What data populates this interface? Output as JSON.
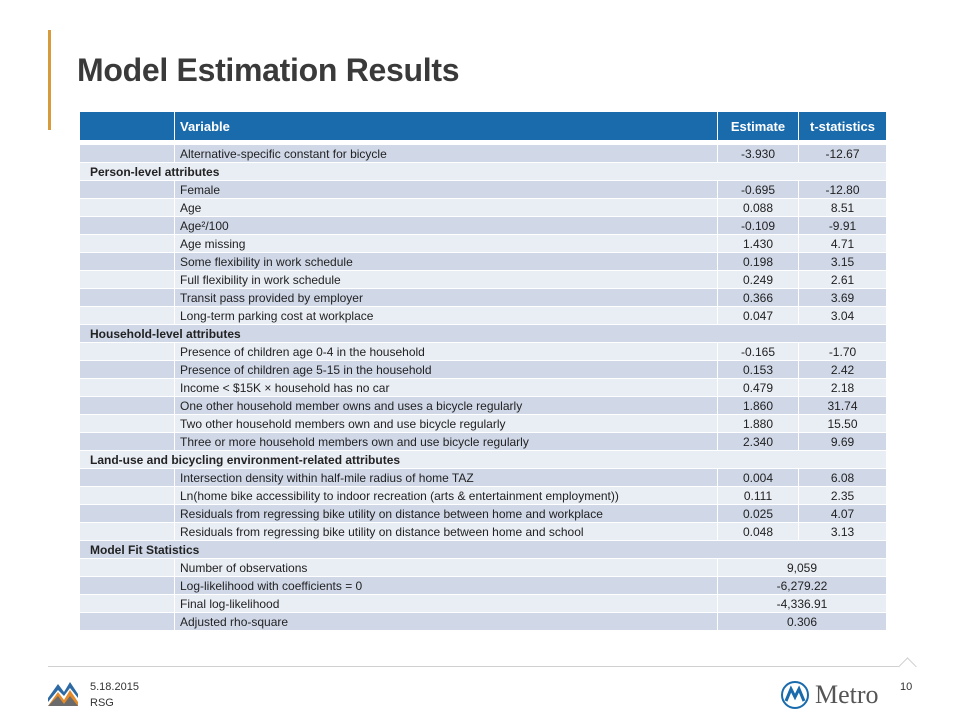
{
  "slide": {
    "title": "Model Estimation Results",
    "footer_date": "5.18.2015",
    "footer_org": "RSG",
    "page_number": "10",
    "metro_logo_text": "Metro",
    "accent_color": "#d89b3c",
    "header_color": "#1a6bac"
  },
  "table": {
    "headers": [
      "Variable",
      "Estimate",
      "t-statistics"
    ],
    "rows": [
      {
        "type": "row",
        "variable": "Alternative-specific constant for bicycle",
        "estimate": "-3.930",
        "t": "-12.67"
      },
      {
        "type": "section",
        "label": "Person-level attributes"
      },
      {
        "type": "row",
        "variable": "Female",
        "estimate": "-0.695",
        "t": "-12.80"
      },
      {
        "type": "row",
        "variable": "Age",
        "estimate": "0.088",
        "t": "8.51"
      },
      {
        "type": "row",
        "variable": "Age²/100",
        "estimate": "-0.109",
        "t": "-9.91"
      },
      {
        "type": "row",
        "variable": "Age missing",
        "estimate": "1.430",
        "t": "4.71"
      },
      {
        "type": "row",
        "variable": "Some flexibility in work schedule",
        "estimate": "0.198",
        "t": "3.15"
      },
      {
        "type": "row",
        "variable": "Full flexibility in work schedule",
        "estimate": "0.249",
        "t": "2.61"
      },
      {
        "type": "row",
        "variable": "Transit pass provided by employer",
        "estimate": "0.366",
        "t": "3.69"
      },
      {
        "type": "row",
        "variable": "Long-term parking cost at workplace",
        "estimate": "0.047",
        "t": "3.04"
      },
      {
        "type": "section",
        "label": "Household-level attributes"
      },
      {
        "type": "row",
        "variable": "Presence of children age 0-4 in the household",
        "estimate": "-0.165",
        "t": "-1.70"
      },
      {
        "type": "row",
        "variable": "Presence of children age 5-15 in the household",
        "estimate": "0.153",
        "t": "2.42"
      },
      {
        "type": "row",
        "variable": "Income < $15K × household has no car",
        "estimate": "0.479",
        "t": "2.18"
      },
      {
        "type": "row",
        "variable": "One other household member owns and uses a bicycle regularly",
        "estimate": "1.860",
        "t": "31.74"
      },
      {
        "type": "row",
        "variable": "Two other household members own and use bicycle regularly",
        "estimate": "1.880",
        "t": "15.50"
      },
      {
        "type": "row",
        "variable": "Three or more household members own and use bicycle regularly",
        "estimate": "2.340",
        "t": "9.69"
      },
      {
        "type": "section",
        "label": "Land-use and bicycling environment-related attributes"
      },
      {
        "type": "row",
        "variable": "Intersection density within half-mile radius of home TAZ",
        "estimate": "0.004",
        "t": "6.08"
      },
      {
        "type": "row",
        "variable": "Ln(home bike accessibility to indoor recreation (arts & entertainment employment))",
        "estimate": "0.111",
        "t": "2.35"
      },
      {
        "type": "row",
        "variable": "Residuals from regressing bike utility on distance between home and workplace",
        "estimate": "0.025",
        "t": "4.07"
      },
      {
        "type": "row",
        "variable": "Residuals from regressing bike utility on distance between home and school",
        "estimate": "0.048",
        "t": "3.13"
      },
      {
        "type": "section",
        "label": "Model Fit Statistics"
      },
      {
        "type": "fit",
        "variable": "Number of observations",
        "value": "9,059"
      },
      {
        "type": "fit",
        "variable": "Log-likelihood with coefficients = 0",
        "value": "-6,279.22"
      },
      {
        "type": "fit",
        "variable": "Final log-likelihood",
        "value": "-4,336.91"
      },
      {
        "type": "fit",
        "variable": "Adjusted rho-square",
        "value": "0.306"
      }
    ]
  }
}
